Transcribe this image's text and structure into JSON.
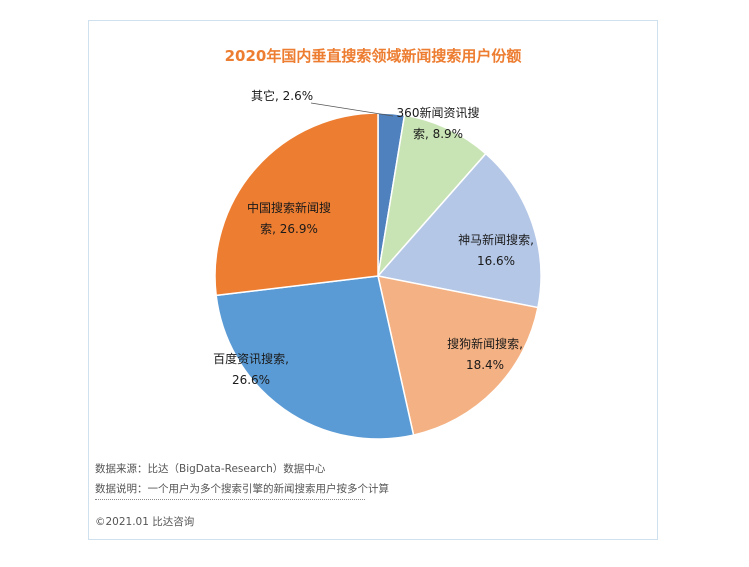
{
  "chart_data": {
    "type": "pie",
    "title": "2020年国内垂直搜索领域新闻搜索用户份额",
    "start_angle_deg": 0,
    "direction": "clockwise",
    "slices": [
      {
        "label": "其它",
        "value": 2.6,
        "value_text": "2.6%",
        "color": "#4e81bd"
      },
      {
        "label": "360新闻资讯搜索",
        "value": 8.9,
        "value_text": "8.9%",
        "color": "#c9e4b4"
      },
      {
        "label": "神马新闻搜索",
        "value": 16.6,
        "value_text": "16.6%",
        "color": "#b4c7e7"
      },
      {
        "label": "搜狗新闻搜索",
        "value": 18.4,
        "value_text": "18.4%",
        "color": "#f4b183"
      },
      {
        "label": "百度资讯搜索",
        "value": 26.6,
        "value_text": "26.6%",
        "color": "#5b9bd5"
      },
      {
        "label": "中国搜索新闻搜索",
        "value": 26.9,
        "value_text": "26.9%",
        "color": "#ed7d31"
      }
    ],
    "data_labels": [
      {
        "lines": [
          "其它, 2.6%"
        ]
      },
      {
        "lines": [
          "360新闻资讯搜",
          "索, 8.9%"
        ]
      },
      {
        "lines": [
          "神马新闻搜索,",
          "16.6%"
        ]
      },
      {
        "lines": [
          "搜狗新闻搜索,",
          "18.4%"
        ]
      },
      {
        "lines": [
          "百度资讯搜索,",
          "26.6%"
        ]
      },
      {
        "lines": [
          "中国搜索新闻搜",
          "索, 26.9%"
        ]
      }
    ],
    "legend": "none"
  },
  "footer": {
    "source": "数据来源：比达（BigData-Research）数据中心",
    "note": "数据说明：一个用户为多个搜索引擎的新闻搜索用户按多个计算",
    "copyright": "©2021.01 比达咨询"
  }
}
